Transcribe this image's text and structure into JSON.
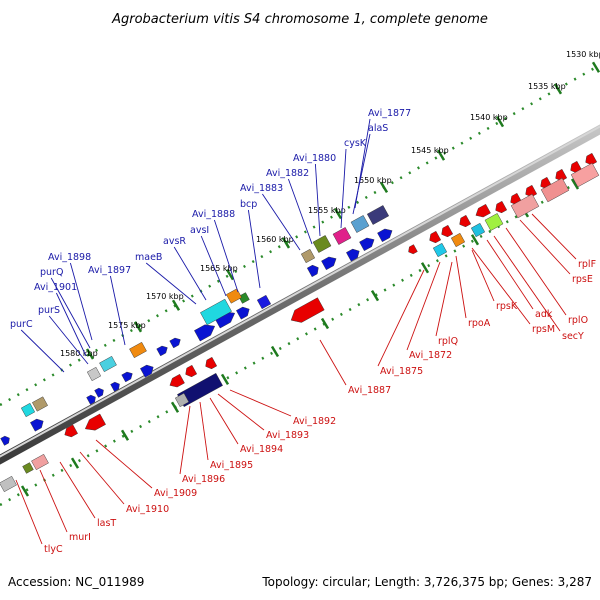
{
  "title": "Agrobacterium vitis S4 chromosome 1, complete genome",
  "accession": "Accession: NC_011989",
  "topology": "Topology: circular; Length: 3,726,375 bp; Genes: 3,287",
  "colors": {
    "forward_gene": "#0a14d2",
    "reverse_gene": "#e80000",
    "backbone": "#808080",
    "tick": "#1e7a1e",
    "label_forward": "#1a1aa8",
    "label_reverse": "#cc1111"
  },
  "scale_ticks": [
    "1530 kbp",
    "1535 kbp",
    "1540 kbp",
    "1545 kbp",
    "1550 kbp",
    "1555 kbp",
    "1560 kbp",
    "1565 kbp",
    "1570 kbp",
    "1575 kbp",
    "1580 kbp"
  ],
  "forward_labels": [
    "Avi_1877",
    "alaS",
    "cysK",
    "Avi_1880",
    "Avi_1882",
    "Avi_1883",
    "bcp",
    "Avi_1888",
    "avsI",
    "avsR",
    "maeB",
    "Avi_1897",
    "Avi_1898",
    "purQ",
    "Avi_1901",
    "purS",
    "purC"
  ],
  "reverse_labels": [
    "rplF",
    "rpsE",
    "rplO",
    "secY",
    "adk",
    "rpsM",
    "rpsK",
    "rpoA",
    "rplQ",
    "Avi_1872",
    "Avi_1875",
    "Avi_1887",
    "Avi_1892",
    "Avi_1893",
    "Avi_1894",
    "Avi_1895",
    "Avi_1896",
    "Avi_1909",
    "Avi_1910",
    "lasT",
    "murI",
    "tlyC"
  ]
}
